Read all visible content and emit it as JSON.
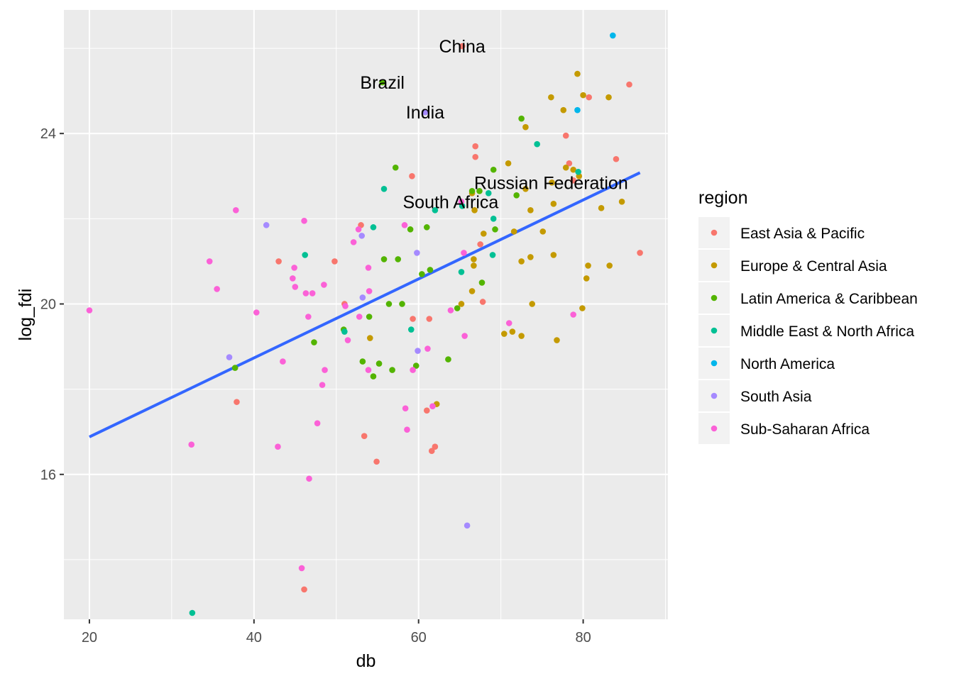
{
  "chart_data": {
    "type": "scatter",
    "xlabel": "db",
    "ylabel": "log_fdi",
    "xlim": [
      16.9,
      90.3
    ],
    "ylim": [
      12.6,
      26.9
    ],
    "x_ticks": [
      20,
      40,
      60,
      80
    ],
    "y_ticks": [
      16,
      20,
      24
    ],
    "grid": true,
    "legend_title": "region",
    "legend_position": "right",
    "series": [
      {
        "name": "East Asia & Pacific",
        "color": "#F8766D",
        "points": [
          [
            65.3,
            26.05
          ],
          [
            85.6,
            25.15
          ],
          [
            80.7,
            24.85
          ],
          [
            77.9,
            23.95
          ],
          [
            66.9,
            23.7
          ],
          [
            66.9,
            23.45
          ],
          [
            84.0,
            23.4
          ],
          [
            78.3,
            23.3
          ],
          [
            59.2,
            23.0
          ],
          [
            78.8,
            22.9
          ],
          [
            53.0,
            21.85
          ],
          [
            67.5,
            21.4
          ],
          [
            43.0,
            21.0
          ],
          [
            49.8,
            21.0
          ],
          [
            51.0,
            20.0
          ],
          [
            67.8,
            20.05
          ],
          [
            59.3,
            19.65
          ],
          [
            61.3,
            19.65
          ],
          [
            61.0,
            17.5
          ],
          [
            62.0,
            16.65
          ],
          [
            61.6,
            16.55
          ],
          [
            37.9,
            17.7
          ],
          [
            53.4,
            16.9
          ],
          [
            54.9,
            16.3
          ],
          [
            46.1,
            13.3
          ],
          [
            86.9,
            21.2
          ]
        ]
      },
      {
        "name": "Europe & Central Asia",
        "color": "#C49A00",
        "points": [
          [
            79.3,
            25.4
          ],
          [
            80.0,
            24.9
          ],
          [
            83.1,
            24.85
          ],
          [
            76.1,
            24.85
          ],
          [
            77.6,
            24.55
          ],
          [
            73.0,
            24.15
          ],
          [
            70.9,
            23.3
          ],
          [
            77.9,
            23.2
          ],
          [
            78.8,
            23.15
          ],
          [
            79.5,
            23.0
          ],
          [
            76.2,
            22.85
          ],
          [
            73.0,
            22.7
          ],
          [
            66.5,
            22.6
          ],
          [
            66.8,
            22.2
          ],
          [
            73.6,
            22.2
          ],
          [
            76.4,
            22.35
          ],
          [
            82.2,
            22.25
          ],
          [
            84.7,
            22.4
          ],
          [
            75.1,
            21.7
          ],
          [
            71.6,
            21.7
          ],
          [
            67.9,
            21.65
          ],
          [
            76.4,
            21.15
          ],
          [
            73.6,
            21.1
          ],
          [
            72.5,
            21.0
          ],
          [
            80.6,
            20.9
          ],
          [
            83.2,
            20.9
          ],
          [
            66.7,
            21.05
          ],
          [
            66.7,
            20.9
          ],
          [
            80.4,
            20.6
          ],
          [
            66.5,
            20.3
          ],
          [
            65.2,
            20.0
          ],
          [
            73.8,
            20.0
          ],
          [
            79.9,
            19.9
          ],
          [
            70.4,
            19.3
          ],
          [
            71.4,
            19.35
          ],
          [
            72.5,
            19.25
          ],
          [
            76.8,
            19.15
          ],
          [
            54.1,
            19.2
          ],
          [
            62.2,
            17.65
          ]
        ]
      },
      {
        "name": "Latin America & Caribbean",
        "color": "#53B400",
        "points": [
          [
            55.6,
            25.2
          ],
          [
            72.5,
            24.35
          ],
          [
            57.2,
            23.2
          ],
          [
            69.1,
            23.15
          ],
          [
            66.5,
            22.65
          ],
          [
            67.4,
            22.65
          ],
          [
            71.9,
            22.55
          ],
          [
            61.0,
            21.8
          ],
          [
            59.0,
            21.75
          ],
          [
            69.3,
            21.75
          ],
          [
            55.8,
            21.05
          ],
          [
            57.5,
            21.05
          ],
          [
            61.4,
            20.8
          ],
          [
            67.7,
            20.5
          ],
          [
            60.4,
            20.7
          ],
          [
            56.4,
            20.0
          ],
          [
            58.0,
            20.0
          ],
          [
            64.7,
            19.9
          ],
          [
            54.0,
            19.7
          ],
          [
            50.9,
            19.4
          ],
          [
            47.3,
            19.1
          ],
          [
            53.2,
            18.65
          ],
          [
            55.2,
            18.6
          ],
          [
            59.7,
            18.55
          ],
          [
            63.6,
            18.7
          ],
          [
            37.7,
            18.5
          ],
          [
            54.5,
            18.3
          ],
          [
            56.8,
            18.45
          ]
        ]
      },
      {
        "name": "Middle East & North Africa",
        "color": "#00C094",
        "points": [
          [
            74.4,
            23.75
          ],
          [
            79.4,
            23.1
          ],
          [
            55.8,
            22.7
          ],
          [
            68.5,
            22.6
          ],
          [
            65.3,
            22.3
          ],
          [
            62.0,
            22.2
          ],
          [
            69.1,
            22.0
          ],
          [
            54.5,
            21.8
          ],
          [
            46.2,
            21.15
          ],
          [
            69.0,
            21.15
          ],
          [
            65.2,
            20.75
          ],
          [
            51.0,
            19.35
          ],
          [
            59.1,
            19.4
          ],
          [
            32.5,
            12.75
          ]
        ]
      },
      {
        "name": "North America",
        "color": "#00B6EB",
        "points": [
          [
            83.6,
            26.3
          ],
          [
            79.3,
            24.55
          ]
        ]
      },
      {
        "name": "South Asia",
        "color": "#A58AFF",
        "points": [
          [
            60.8,
            24.5
          ],
          [
            41.5,
            21.85
          ],
          [
            59.8,
            21.2
          ],
          [
            53.1,
            21.6
          ],
          [
            53.2,
            20.15
          ],
          [
            37.0,
            18.75
          ],
          [
            59.9,
            18.9
          ],
          [
            65.9,
            14.8
          ]
        ]
      },
      {
        "name": "Sub-Saharan Africa",
        "color": "#FB61D7",
        "points": [
          [
            20.0,
            19.85
          ],
          [
            37.8,
            22.2
          ],
          [
            46.1,
            21.95
          ],
          [
            34.6,
            21.0
          ],
          [
            35.5,
            20.35
          ],
          [
            44.9,
            20.85
          ],
          [
            44.7,
            20.6
          ],
          [
            45.0,
            20.4
          ],
          [
            46.3,
            20.25
          ],
          [
            47.1,
            20.25
          ],
          [
            48.5,
            20.45
          ],
          [
            40.3,
            19.8
          ],
          [
            46.6,
            19.7
          ],
          [
            51.1,
            19.95
          ],
          [
            52.1,
            21.45
          ],
          [
            52.7,
            21.75
          ],
          [
            58.3,
            21.85
          ],
          [
            53.9,
            20.85
          ],
          [
            54.0,
            20.3
          ],
          [
            52.8,
            19.7
          ],
          [
            51.4,
            19.15
          ],
          [
            43.5,
            18.65
          ],
          [
            48.6,
            18.45
          ],
          [
            48.3,
            18.1
          ],
          [
            53.9,
            18.45
          ],
          [
            59.3,
            18.45
          ],
          [
            61.1,
            18.95
          ],
          [
            65.6,
            19.25
          ],
          [
            63.9,
            19.85
          ],
          [
            71.0,
            19.55
          ],
          [
            78.8,
            19.75
          ],
          [
            65.5,
            21.2
          ],
          [
            65.2,
            22.4
          ],
          [
            47.7,
            17.2
          ],
          [
            58.4,
            17.55
          ],
          [
            58.6,
            17.05
          ],
          [
            61.7,
            17.6
          ],
          [
            32.4,
            16.7
          ],
          [
            42.9,
            16.65
          ],
          [
            46.7,
            15.9
          ],
          [
            45.8,
            13.8
          ]
        ]
      }
    ],
    "annotations": [
      {
        "text": "China",
        "x": 65.3,
        "y": 26.05
      },
      {
        "text": "Brazil",
        "x": 55.6,
        "y": 25.2
      },
      {
        "text": "India",
        "x": 60.8,
        "y": 24.5
      },
      {
        "text": "Russian Federation",
        "x": 76.1,
        "y": 22.85
      },
      {
        "text": "South Africa",
        "x": 63.9,
        "y": 22.4
      }
    ],
    "trend_line": {
      "method": "linear",
      "color": "#3366FF",
      "x": [
        20.0,
        86.9
      ],
      "y": [
        16.88,
        23.08
      ]
    }
  }
}
